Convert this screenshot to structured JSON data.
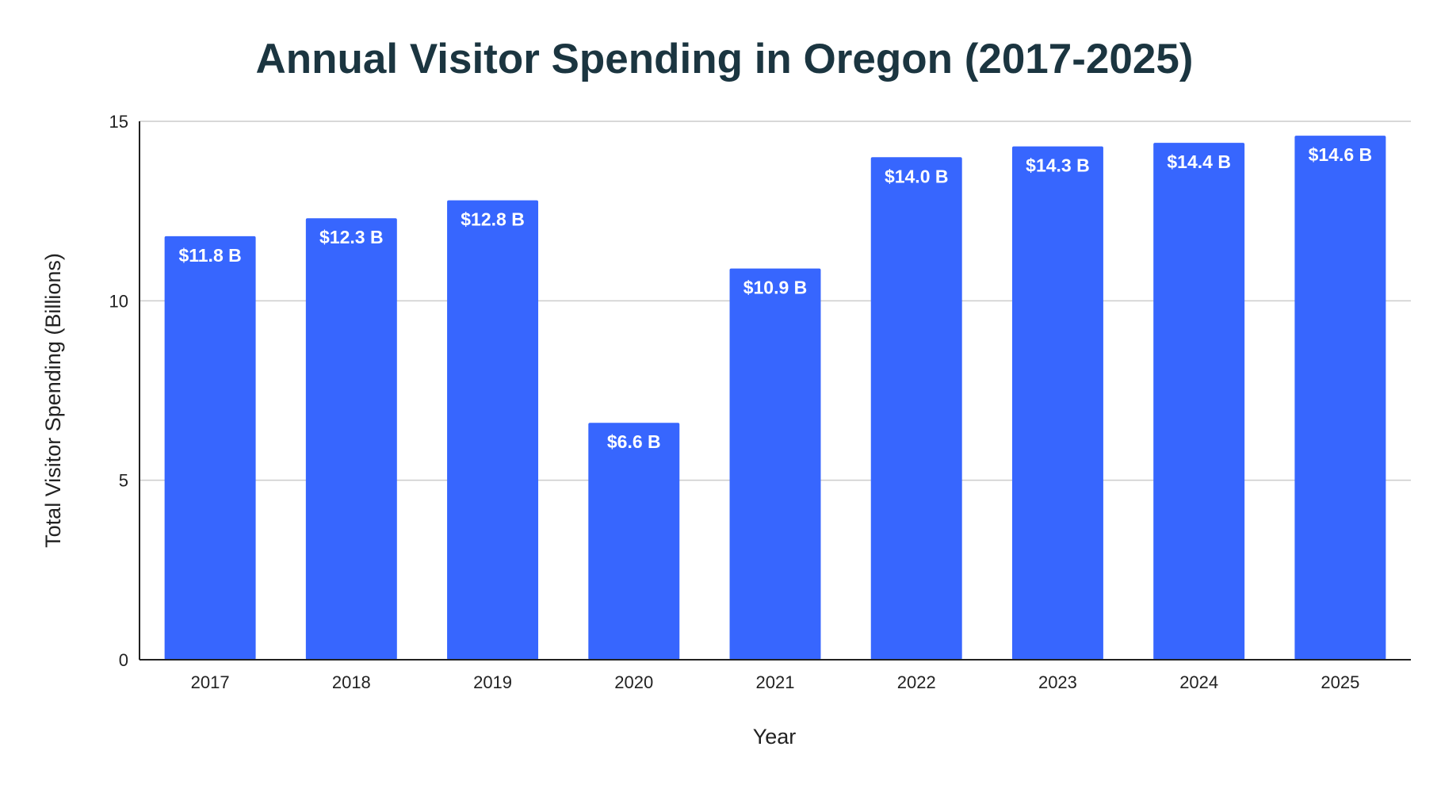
{
  "chart_data": {
    "type": "bar",
    "title": "Annual Visitor Spending in Oregon (2017-2025)",
    "xlabel": "Year",
    "ylabel": "Total Visitor Spending (Billions)",
    "categories": [
      "2017",
      "2018",
      "2019",
      "2020",
      "2021",
      "2022",
      "2023",
      "2024",
      "2025"
    ],
    "values": [
      11.8,
      12.3,
      12.8,
      6.6,
      10.9,
      14.0,
      14.3,
      14.4,
      14.6
    ],
    "data_labels": [
      "$11.8 B",
      "$12.3 B",
      "$12.8 B",
      "$6.6 B",
      "$10.9 B",
      "$14.0 B",
      "$14.3 B",
      "$14.4 B",
      "$14.6 B"
    ],
    "ylim": [
      0,
      15
    ],
    "yticks": [
      "0",
      "5",
      "10",
      "15"
    ],
    "grid": true,
    "bar_color": "#3766fe",
    "legend": "none"
  }
}
